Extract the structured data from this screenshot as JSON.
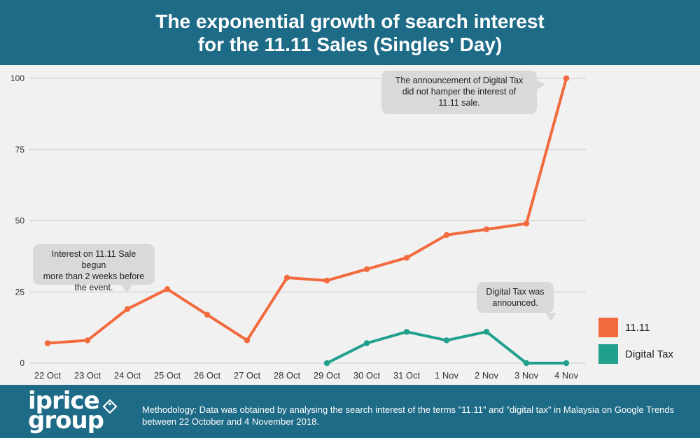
{
  "header": {
    "title_line1": "The exponential growth of search interest",
    "title_line2": "for the 11.11 Sales (Singles' Day)"
  },
  "chart_data": {
    "type": "line",
    "x": [
      "22 Oct",
      "23 Oct",
      "24 Oct",
      "25 Oct",
      "26 Oct",
      "27 Oct",
      "28 Oct",
      "29 Oct",
      "30 Oct",
      "31 Oct",
      "1 Nov",
      "2 Nov",
      "3 Nov",
      "4 Nov"
    ],
    "series": [
      {
        "name": "11.11",
        "color": "#f26a3d",
        "values": [
          7,
          8,
          19,
          26,
          17,
          8,
          30,
          29,
          33,
          37,
          45,
          47,
          49,
          100
        ]
      },
      {
        "name": "Digital Tax",
        "color": "#21a08d",
        "values": [
          null,
          null,
          null,
          null,
          null,
          null,
          null,
          0,
          7,
          11,
          8,
          11,
          0,
          0
        ]
      }
    ],
    "yticks": [
      0,
      25,
      50,
      75,
      100
    ],
    "ylim": [
      0,
      100
    ],
    "grid": true,
    "legend_position": "right",
    "annotations": [
      {
        "text": "Interest on 11.11 Sale begun more than 2 weeks before the event."
      },
      {
        "text": "Digital Tax was announced."
      },
      {
        "text": "The announcement of Digital Tax did not hamper the interest of 11.11 sale."
      }
    ]
  },
  "callouts": {
    "interest_line1": "Interest on 11.11 Sale begun",
    "interest_line2": "more than 2 weeks before",
    "interest_line3": "the event.",
    "tax_line1": "Digital Tax was",
    "tax_line2": "announced.",
    "announce_line1": "The announcement of Digital Tax",
    "announce_line2": "did not hamper the interest of",
    "announce_line3": "11.11 sale."
  },
  "footer": {
    "logo_line1": "iprice",
    "logo_line2": "group",
    "methodology": "Methodology: Data was obtained by analysing the search interest of the terms \"11.11\" and \"digital tax\" in Malaysia on Google Trends between 22 October and 4 November 2018."
  }
}
